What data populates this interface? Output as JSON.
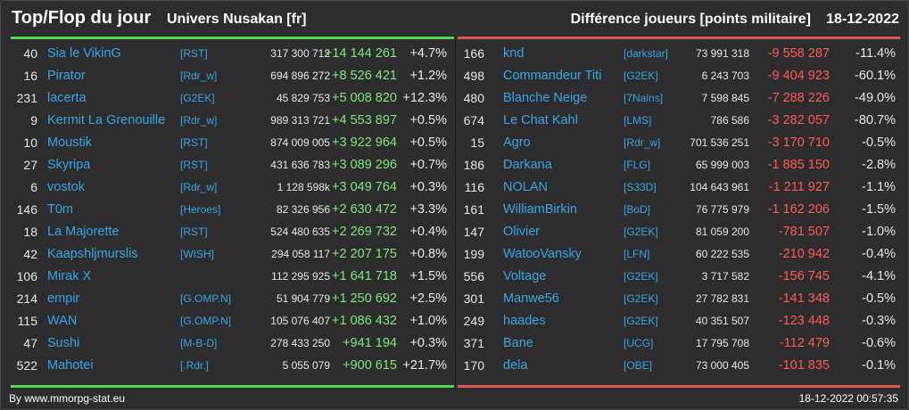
{
  "header": {
    "title": "Top/Flop du jour",
    "subtitle": "Univers Nusakan [fr]",
    "diff_label": "Différence joueurs [points militaire]",
    "date": "18-12-2022"
  },
  "colors": {
    "gain": "#7ee87e",
    "loss": "#ff5b52",
    "link": "#34a7e6",
    "top_bar": "#53d653",
    "flop_bar": "#e0564f"
  },
  "top": [
    {
      "rank": "40",
      "player": "Sia le VikinG",
      "alliance": "[RST]",
      "points": "317 300 712",
      "diff": "+14 144 261",
      "pct": "+4.7%"
    },
    {
      "rank": "16",
      "player": "Pirator",
      "alliance": "[Rdr_w]",
      "points": "694 896 272",
      "diff": "+8 526 421",
      "pct": "+1.2%"
    },
    {
      "rank": "231",
      "player": "lacerta",
      "alliance": "[G2EK]",
      "points": "45 829 753",
      "diff": "+5 008 820",
      "pct": "+12.3%"
    },
    {
      "rank": "9",
      "player": "Kermit La Grenouille",
      "alliance": "[Rdr_w]",
      "points": "989 313 721",
      "diff": "+4 553 897",
      "pct": "+0.5%"
    },
    {
      "rank": "10",
      "player": "Moustik",
      "alliance": "[RST]",
      "points": "874 009 005",
      "diff": "+3 922 964",
      "pct": "+0.5%"
    },
    {
      "rank": "27",
      "player": "Skyripa",
      "alliance": "[RST]",
      "points": "431 636 783",
      "diff": "+3 089 296",
      "pct": "+0.7%"
    },
    {
      "rank": "6",
      "player": "vostok",
      "alliance": "[Rdr_w]",
      "points": "1 128 598k",
      "diff": "+3 049 764",
      "pct": "+0.3%"
    },
    {
      "rank": "146",
      "player": "T0m",
      "alliance": "[Heroes]",
      "points": "82 326 956",
      "diff": "+2 630 472",
      "pct": "+3.3%"
    },
    {
      "rank": "18",
      "player": "La Majorette",
      "alliance": "[RST]",
      "points": "524 480 635",
      "diff": "+2 269 732",
      "pct": "+0.4%"
    },
    {
      "rank": "42",
      "player": "Kaapshljmurslis",
      "alliance": "[WISH]",
      "points": "294 058 117",
      "diff": "+2 207 175",
      "pct": "+0.8%"
    },
    {
      "rank": "106",
      "player": "Mirak X",
      "alliance": "",
      "points": "112 295 925",
      "diff": "+1 641 718",
      "pct": "+1.5%"
    },
    {
      "rank": "214",
      "player": "empir",
      "alliance": "[G.OMP.N]",
      "points": "51 904 779",
      "diff": "+1 250 692",
      "pct": "+2.5%"
    },
    {
      "rank": "115",
      "player": "WAN",
      "alliance": "[G.OMP.N]",
      "points": "105 076 407",
      "diff": "+1 086 432",
      "pct": "+1.0%"
    },
    {
      "rank": "47",
      "player": "Sushi",
      "alliance": "[M-B-D]",
      "points": "278 433 250",
      "diff": "+941 194",
      "pct": "+0.3%"
    },
    {
      "rank": "522",
      "player": "Mahotei",
      "alliance": "[.Rdr.]",
      "points": "5 055 079",
      "diff": "+900 615",
      "pct": "+21.7%"
    }
  ],
  "flop": [
    {
      "rank": "166",
      "player": "knd",
      "alliance": "[darkstar]",
      "points": "73 991 318",
      "diff": "-9 558 287",
      "pct": "-11.4%"
    },
    {
      "rank": "498",
      "player": "Commandeur Titi",
      "alliance": "[G2EK]",
      "points": "6 243 703",
      "diff": "-9 404 923",
      "pct": "-60.1%"
    },
    {
      "rank": "480",
      "player": "Blanche Neige",
      "alliance": "[7Nains]",
      "points": "7 598 845",
      "diff": "-7 288 226",
      "pct": "-49.0%"
    },
    {
      "rank": "674",
      "player": "Le Chat Kahl",
      "alliance": "[LMS]",
      "points": "786 586",
      "diff": "-3 282 057",
      "pct": "-80.7%"
    },
    {
      "rank": "15",
      "player": "Agro",
      "alliance": "[Rdr_w]",
      "points": "701 536 251",
      "diff": "-3 170 710",
      "pct": "-0.5%"
    },
    {
      "rank": "186",
      "player": "Darkana",
      "alliance": "[FLG]",
      "points": "65 999 003",
      "diff": "-1 885 150",
      "pct": "-2.8%"
    },
    {
      "rank": "116",
      "player": "NOLAN",
      "alliance": "[S33D]",
      "points": "104 643 961",
      "diff": "-1 211 927",
      "pct": "-1.1%"
    },
    {
      "rank": "161",
      "player": "WilliamBirkin",
      "alliance": "[BoD]",
      "points": "76 775 979",
      "diff": "-1 162 206",
      "pct": "-1.5%"
    },
    {
      "rank": "147",
      "player": "Olivier",
      "alliance": "[G2EK]",
      "points": "81 059 200",
      "diff": "-781 507",
      "pct": "-1.0%"
    },
    {
      "rank": "199",
      "player": "WatooVansky",
      "alliance": "[LFN]",
      "points": "60 222 535",
      "diff": "-210 942",
      "pct": "-0.4%"
    },
    {
      "rank": "556",
      "player": "Voltage",
      "alliance": "[G2EK]",
      "points": "3 717 582",
      "diff": "-156 745",
      "pct": "-4.1%"
    },
    {
      "rank": "301",
      "player": "Manwe56",
      "alliance": "[G2EK]",
      "points": "27 782 831",
      "diff": "-141 348",
      "pct": "-0.5%"
    },
    {
      "rank": "249",
      "player": "haades",
      "alliance": "[G2EK]",
      "points": "40 351 507",
      "diff": "-123 448",
      "pct": "-0.3%"
    },
    {
      "rank": "371",
      "player": "Bane",
      "alliance": "[UCG]",
      "points": "17 795 708",
      "diff": "-112 479",
      "pct": "-0.6%"
    },
    {
      "rank": "170",
      "player": "dela",
      "alliance": "[OBE]",
      "points": "73 000 405",
      "diff": "-101 835",
      "pct": "-0.1%"
    }
  ],
  "footer": {
    "credit": "By www.mmorpg-stat.eu",
    "timestamp": "18-12-2022 00:57:35"
  }
}
